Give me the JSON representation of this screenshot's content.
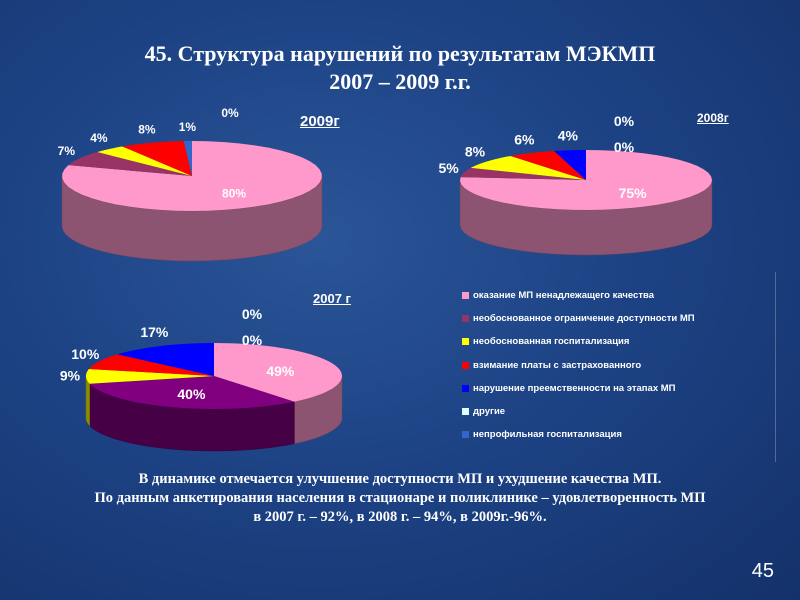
{
  "slide": {
    "title_line1": "45. Структура нарушений по результатам МЭКМП",
    "title_line2": "2007 – 2009 г.г.",
    "summary_line1": "В динамике отмечается улучшение доступности МП и ухудшение качества МП.",
    "summary_line2": "По данным анкетирования населения в стационаре и поликлинике – удовлетворенность МП",
    "summary_line3": "в 2007 г. – 92%, в 2008 г. – 94%, в 2009г.-96%.",
    "page_number": "45"
  },
  "chart_data": [
    {
      "type": "pie",
      "title": "2009г",
      "categories": [
        "оказание МП ненадлежащего качества",
        "необоснованное ограничение доступности МП",
        "необоснованная госпитализация",
        "взимание платы с застрахованного",
        "нарушение преемственности на этапах МП",
        "другие",
        "непрофильная госпитализация"
      ],
      "values": [
        80,
        7,
        4,
        8,
        0,
        null,
        1
      ],
      "labels": [
        "80%",
        "7%",
        "4%",
        "8%",
        "0%",
        null,
        "1%"
      ],
      "colors": [
        "#ff99cc",
        "#993366",
        "#ffff00",
        "#ff0000",
        "#0000ff",
        "#e0ffff",
        "#3366cc"
      ]
    },
    {
      "type": "pie",
      "title": "2008г",
      "categories": [
        "оказание МП ненадлежащего качества",
        "необоснованное ограничение доступности МП",
        "необоснованная госпитализация",
        "взимание платы с застрахованного",
        "нарушение преемственности на этапах МП",
        "другие",
        "непрофильная госпитализация"
      ],
      "values": [
        75,
        5,
        8,
        6,
        4,
        0,
        0
      ],
      "labels": [
        "75%",
        "5%",
        "8%",
        "6%",
        "4%",
        "0%",
        "0%"
      ],
      "colors": [
        "#ff99cc",
        "#993366",
        "#ffff00",
        "#ff0000",
        "#0000ff",
        "#e0ffff",
        "#3366cc"
      ]
    },
    {
      "type": "pie",
      "title": "2007 г",
      "categories": [
        "оказание МП ненадлежащего качества",
        "необоснованное ограничение доступности МП",
        "необоснованная госпитализация",
        "взимание платы с застрахованного",
        "нарушение преемственности на этапах МП",
        "другие",
        "непрофильная госпитализация"
      ],
      "values": [
        49,
        40,
        9,
        10,
        17,
        0,
        0
      ],
      "labels": [
        "49%",
        "40%",
        "9%",
        "10%",
        "17%",
        "0%",
        "0%"
      ],
      "colors": [
        "#ff99cc",
        "#800080",
        "#ffff00",
        "#ff0000",
        "#0000ff",
        "#e0ffff",
        "#3366cc"
      ]
    }
  ],
  "legend": [
    {
      "label": "оказание МП ненадлежащего качества",
      "color": "#ff99cc"
    },
    {
      "label": "необоснованное ограничение доступности МП",
      "color": "#993366"
    },
    {
      "label": "необоснованная госпитализация",
      "color": "#ffff00"
    },
    {
      "label": "взимание платы с застрахованного",
      "color": "#ff0000"
    },
    {
      "label": "нарушение преемственности на этапах МП",
      "color": "#0000ff"
    },
    {
      "label": "другие",
      "color": "#e0ffff"
    },
    {
      "label": "непрофильная госпитализация",
      "color": "#3366cc"
    }
  ]
}
